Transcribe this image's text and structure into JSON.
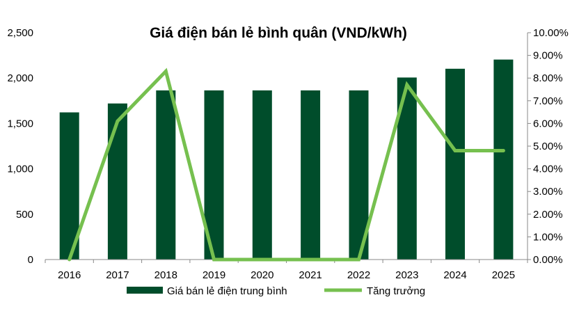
{
  "chart_data": {
    "type": "bar",
    "title": "Giá điện bán lẻ bình quân (VND/kWh)",
    "categories": [
      "2016",
      "2017",
      "2018",
      "2019",
      "2020",
      "2021",
      "2022",
      "2023",
      "2024",
      "2025"
    ],
    "series": [
      {
        "name": "Giá bán lẻ điện trung bình",
        "type": "bar",
        "axis": "left",
        "color": "#004d2b",
        "values": [
          1622,
          1720,
          1864,
          1864,
          1864,
          1864,
          1864,
          2006,
          2103,
          2204
        ]
      },
      {
        "name": "Tăng trưởng",
        "type": "line",
        "axis": "right",
        "color": "#76c04f",
        "values": [
          0.0,
          6.1,
          8.3,
          0.0,
          0.0,
          0.0,
          0.0,
          7.7,
          4.8,
          4.8
        ]
      }
    ],
    "y_left": {
      "min": 0,
      "max": 2500,
      "ticks": [
        0,
        500,
        1000,
        1500,
        2000,
        2500
      ],
      "tick_labels": [
        "0",
        "500",
        "1,000",
        "1,500",
        "2,000",
        "2,500"
      ]
    },
    "y_right": {
      "min": 0,
      "max": 10,
      "ticks": [
        0,
        1,
        2,
        3,
        4,
        5,
        6,
        7,
        8,
        9,
        10
      ],
      "tick_labels": [
        "0.00%",
        "1.00%",
        "2.00%",
        "3.00%",
        "4.00%",
        "5.00%",
        "6.00%",
        "7.00%",
        "8.00%",
        "9.00%",
        "10.00%"
      ]
    },
    "legend": {
      "position": "bottom",
      "items": [
        "Giá bán lẻ điện trung bình",
        "Tăng trưởng"
      ]
    },
    "grid": false
  }
}
